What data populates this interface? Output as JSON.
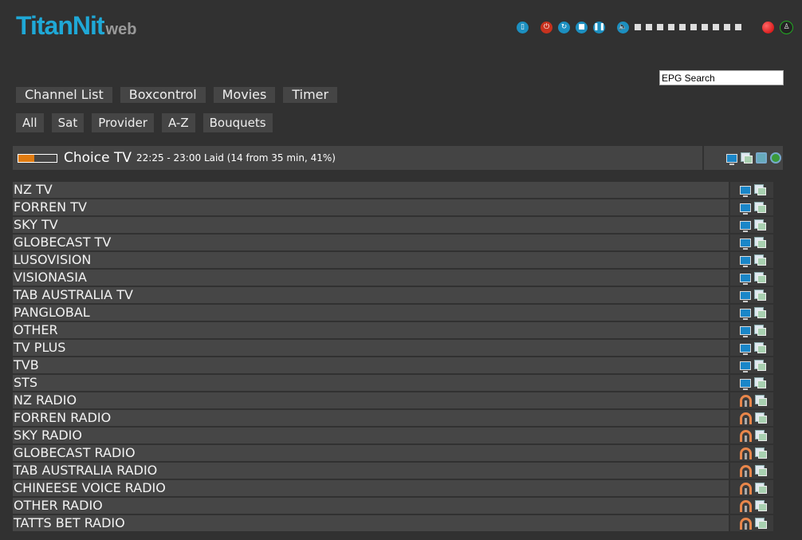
{
  "logo": {
    "title": "TitanNit",
    "suffix": "web"
  },
  "controls": {
    "volume_level": 0,
    "volume_steps": 10,
    "icons": [
      "remote-icon",
      "power-icon",
      "restart-icon",
      "stop-icon",
      "pause-icon",
      "volume-icon",
      "record-icon",
      "signal-icon"
    ]
  },
  "epg_search": {
    "value": "EPG Search"
  },
  "nav": [
    "Channel List",
    "Boxcontrol",
    "Movies",
    "Timer"
  ],
  "filters": [
    "All",
    "Sat",
    "Provider",
    "A-Z",
    "Bouquets"
  ],
  "current": {
    "channel": "Choice TV",
    "info": "22:25 - 23:00 Laid (14 from 35 min, 41%)",
    "progress_percent": 41,
    "progress_color": "#e07b10"
  },
  "channels": [
    {
      "name": "NZ TV",
      "type": "tv"
    },
    {
      "name": "FORREN TV",
      "type": "tv"
    },
    {
      "name": "SKY TV",
      "type": "tv"
    },
    {
      "name": "GLOBECAST TV",
      "type": "tv"
    },
    {
      "name": "LUSOVISION",
      "type": "tv"
    },
    {
      "name": "VISIONASIA",
      "type": "tv"
    },
    {
      "name": "TAB AUSTRALIA TV",
      "type": "tv"
    },
    {
      "name": "PANGLOBAL",
      "type": "tv"
    },
    {
      "name": "OTHER",
      "type": "tv"
    },
    {
      "name": "TV PLUS",
      "type": "tv"
    },
    {
      "name": "TVB",
      "type": "tv"
    },
    {
      "name": "STS",
      "type": "tv"
    },
    {
      "name": "NZ RADIO",
      "type": "radio"
    },
    {
      "name": "FORREN RADIO",
      "type": "radio"
    },
    {
      "name": "SKY RADIO",
      "type": "radio"
    },
    {
      "name": "GLOBECAST RADIO",
      "type": "radio"
    },
    {
      "name": "TAB AUSTRALIA RADIO",
      "type": "radio"
    },
    {
      "name": "CHINEESE VOICE RADIO",
      "type": "radio"
    },
    {
      "name": "OTHER RADIO",
      "type": "radio"
    },
    {
      "name": "TATTS BET RADIO",
      "type": "radio"
    }
  ]
}
